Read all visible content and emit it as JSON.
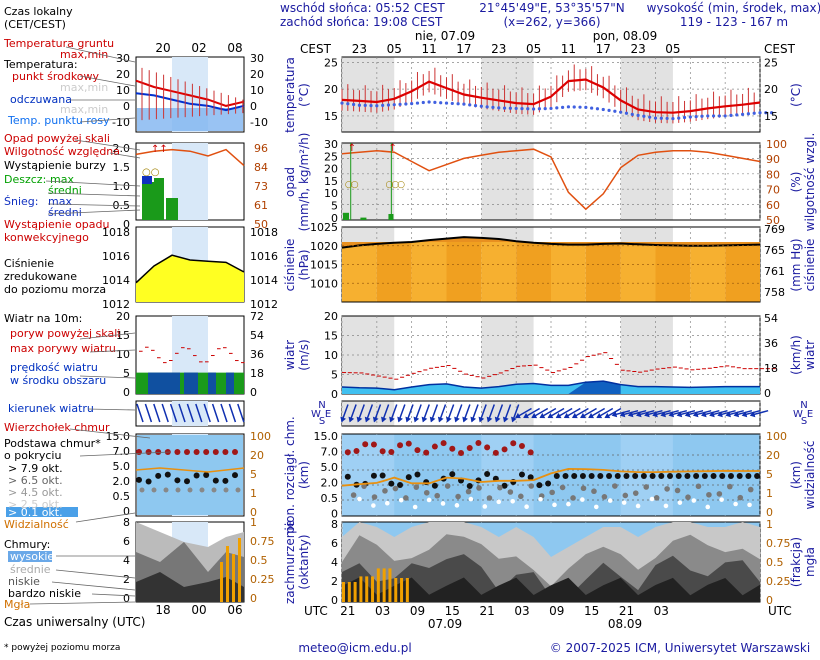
{
  "header": {
    "sunrise": "wschód słońca: 05:52 CEST",
    "sunset": "zachód słońca: 19:08 CEST",
    "coords": "21°45'49\"E, 53°35'57\"N",
    "grid": "(x=262, y=366)",
    "height_title": "wysokość (min, środek, max)",
    "height_values": "119 - 123 - 167 m",
    "time_local_label": "Czas lokalny",
    "time_local_sub": "(CET/CEST)",
    "cest_left": "CEST",
    "cest_right": "CEST",
    "day1": "nie, 07.09",
    "day2": "pon, 08.09",
    "top_hours": [
      "23",
      "05",
      "11",
      "17",
      "23",
      "05",
      "11",
      "17",
      "23",
      "05"
    ],
    "legend_top_hours": [
      "20",
      "02",
      "08"
    ]
  },
  "footer": {
    "utc_left": "UTC",
    "utc_right": "UTC",
    "bottom_hours": [
      "21",
      "03",
      "09",
      "15",
      "21",
      "03",
      "09",
      "15",
      "21",
      "03"
    ],
    "date1": "07.09",
    "date2": "08.09",
    "legend_bottom_hours": [
      "18",
      "00",
      "06"
    ],
    "utc_label": "Czas uniwersalny (UTC)",
    "footnote": "* powyżej poziomu morza",
    "email": "meteo@icm.edu.pl",
    "copyright": "© 2007-2025 ICM, Uniwersytet Warszawski"
  },
  "legend": {
    "temp_ground": "Temperatura gruntu",
    "temp_ground_mm": "max,min",
    "temperature": "Temperatura:",
    "mid_point": "punkt środkowy",
    "max_min": "max,min",
    "felt": "odczuwana",
    "felt_mm": "max,min",
    "dew_point": "Temp. punktu rosy",
    "precip_above": "Opad powyżej skali",
    "humidity": "Wilgotność względna",
    "storm": "Wystąpienie burzy",
    "rain": "Deszcz:",
    "rain_max": "max",
    "rain_mid": "średni",
    "snow": "Śnieg:",
    "snow_max": "max",
    "snow_mid": "średni",
    "precip_conv": "Wystąpienie opadu",
    "precip_conv2": "konwekcyjnego",
    "pressure1": "Ciśnienie",
    "pressure2": "zredukowane",
    "pressure3": "do poziomu morza",
    "wind_at": "Wiatr na 10m:",
    "gust_above": "poryw powyżej skali",
    "gust_max": "max porywy wiatru",
    "wind_speed1": "prędkość wiatru",
    "wind_speed2": "w środku obszaru",
    "wind_dir": "kierunek wiatru",
    "cloud_top": "Wierzchołek chmur",
    "cloud_base1": "Podstawa chmur*",
    "cloud_base2": "o pokryciu",
    "okt": [
      "> 7.9 okt.",
      "> 6.5 okt.",
      "> 4.5 okt.",
      "> 2.5 okt.",
      "> 0.1 okt."
    ],
    "visibility": "Widzialność",
    "clouds": "Chmury:",
    "cloud_high": "wysokie",
    "cloud_mid": "średnie",
    "cloud_low": "niskie",
    "cloud_vlow": "bardzo niskie",
    "fog": "Mgła",
    "temp_ticks_left": [
      "30",
      "20",
      "10",
      "0",
      "-10"
    ],
    "temp_ticks_right": [
      "30",
      "20",
      "10",
      "0",
      "-10"
    ],
    "prec_ticks_left": [
      "2.0",
      "1.5",
      "1.0",
      "0.5",
      "0"
    ],
    "hum_ticks": [
      "96",
      "84",
      "73",
      "61",
      "50"
    ],
    "pres_ticks_left": [
      "1018",
      "1016",
      "1014",
      "1012"
    ],
    "pres_ticks_right": [
      "1018",
      "1016",
      "1014",
      "1012"
    ],
    "wind_ticks_left": [
      "20",
      "15",
      "10",
      "5",
      "0"
    ],
    "wind_ticks_right": [
      "72",
      "54",
      "36",
      "18",
      "0"
    ],
    "cloud_ticks_left": [
      "15.0",
      "7.0",
      "5.0",
      "2.0",
      "0.5",
      "0"
    ],
    "vis_ticks": [
      "100",
      "20",
      "5",
      "1",
      "0"
    ],
    "cc_ticks_left": [
      "8",
      "6",
      "4",
      "2",
      "0"
    ],
    "cc_ticks_right": [
      "1",
      "0.75",
      "0.5",
      "0.25",
      "0"
    ]
  },
  "axes": {
    "temp_label": "temperatura\n(°C)",
    "temp_label_r": "(°C)",
    "temp_ticks": [
      "25",
      "20",
      "15"
    ],
    "prec_label": "opad\n(mm/h, kg/m²/h)",
    "prec_ticks": [
      "30",
      "25",
      "20",
      "15",
      "10",
      "5",
      "0"
    ],
    "hum_label": "(%)\nwilgotność wzgl.",
    "hum_ticks": [
      "100",
      "90",
      "80",
      "70",
      "60",
      "50"
    ],
    "pres_label": "ciśnienie\n(hPa)",
    "pres_ticks": [
      "1025",
      "1020",
      "1015",
      "1010"
    ],
    "pres_label_r": "(mm Hg)\nciśnienie",
    "pres_ticks_r": [
      "769",
      "765",
      "761",
      "758"
    ],
    "wind_label": "wiatr\n(m/s)",
    "wind_ticks": [
      "20",
      "15",
      "10",
      "5",
      "0"
    ],
    "wind_label_r": "(km/h)\nwiatr",
    "wind_ticks_r": [
      "54",
      "36",
      "18",
      "0"
    ],
    "cloud_label": "pion. rozciągł. chm.\n(km)",
    "cloud_ticks": [
      "15.0",
      "7.0",
      "5.0",
      "2.0",
      "0.5",
      "0"
    ],
    "vis_label": "(km)\nwidzialność",
    "vis_ticks": [
      "100",
      "20",
      "5",
      "1",
      "0"
    ],
    "cc_label": "zachmurzenie\n(oktanty)",
    "cc_ticks": [
      "8",
      "6",
      "4",
      "2",
      "0"
    ],
    "fog_label": "(frakcja)\nmgła",
    "fog_ticks": [
      "1",
      "0.75",
      "0.5",
      "0.25",
      "0"
    ],
    "compass": [
      "N",
      "W",
      "S",
      "E"
    ]
  },
  "chart_data": {
    "type": "line",
    "x_hours": [
      0,
      3,
      6,
      9,
      12,
      15,
      18,
      21,
      24,
      27,
      30,
      33,
      36,
      39,
      42,
      45,
      48,
      51,
      54,
      57,
      60,
      63,
      66,
      69,
      72
    ],
    "x_start": "2025-09-06 20:00 CEST",
    "temperature_mid_c": [
      18,
      17.8,
      17.6,
      18.2,
      19.6,
      21.4,
      20.2,
      19.0,
      18.4,
      17.9,
      17.4,
      17.2,
      18.6,
      21.5,
      21.8,
      20.3,
      17.9,
      16.2,
      15.7,
      15.6,
      15.9,
      16.4,
      16.8,
      17.1,
      17.5
    ],
    "dew_point_c": [
      17.4,
      17.0,
      16.9,
      17.1,
      17.3,
      17.6,
      17.4,
      17.2,
      16.8,
      16.5,
      16.4,
      16.3,
      16.4,
      16.7,
      16.6,
      16.2,
      15.7,
      15.1,
      14.6,
      14.5,
      14.8,
      15.0,
      15.0,
      15.3,
      15.6
    ],
    "humidity_pct": [
      93,
      94,
      95,
      94,
      88,
      82,
      86,
      90,
      92,
      94,
      95,
      96,
      91,
      68,
      57,
      67,
      84,
      92,
      94,
      95,
      95,
      94,
      92,
      90,
      88
    ],
    "pressure_hpa": [
      1019.5,
      1020.1,
      1020.5,
      1020.8,
      1021.0,
      1021.5,
      1021.9,
      1022.3,
      1022.1,
      1021.8,
      1021.2,
      1020.8,
      1020.5,
      1020.3,
      1020.3,
      1020.5,
      1020.6,
      1020.4,
      1020.2,
      1020.1,
      1020.0,
      1020.0,
      1020.1,
      1020.2,
      1020.3
    ],
    "wind_ms": [
      1.8,
      1.6,
      1.5,
      1.1,
      1.8,
      2.4,
      2.6,
      1.8,
      1.5,
      1.9,
      2.5,
      2.7,
      2.2,
      2.2,
      3.0,
      3.3,
      2.4,
      1.9,
      1.9,
      1.8,
      1.7,
      1.8,
      1.9,
      1.9,
      1.9
    ],
    "gust_ms": [
      5.5,
      5.4,
      4.6,
      3.8,
      5.3,
      6.6,
      7.3,
      5.1,
      4.1,
      5.4,
      7.1,
      7.4,
      5.5,
      6.8,
      9.6,
      10.6,
      6.1,
      5.6,
      6.4,
      6.9,
      6.2,
      6.6,
      7.2,
      6.5,
      6.5
    ],
    "visibility_km": [
      2.5,
      2.8,
      3.1,
      4.5,
      3.0,
      3.0,
      4.5,
      4.2,
      3.3,
      3.6,
      3.6,
      3.8,
      6.0,
      8.0,
      7.9,
      7.5,
      6.8,
      6.5,
      6.5,
      6.7,
      6.8,
      6.9,
      7.1,
      7.0,
      7.0
    ],
    "fog_fraction": [
      0.25,
      0.32,
      0.42,
      0.3,
      0,
      0,
      0,
      0,
      0,
      0,
      0,
      0,
      0,
      0,
      0,
      0,
      0,
      0,
      0,
      0,
      0,
      0,
      0,
      0,
      0
    ],
    "precip_mmh": [
      1.2,
      0.4,
      0,
      0,
      0,
      0,
      0,
      0,
      0,
      0,
      0,
      0,
      0,
      0,
      0,
      0,
      0,
      0,
      0,
      0,
      0,
      0,
      0,
      0,
      0
    ],
    "cloud_octants": [
      5,
      7,
      6,
      5,
      6,
      7,
      8,
      7,
      6,
      5,
      6,
      5,
      3,
      4,
      5,
      6,
      6,
      5,
      6,
      7,
      7,
      6,
      6,
      7,
      6
    ],
    "ylim_temp": [
      12,
      26
    ],
    "ylim_pressure": [
      1005,
      1025
    ],
    "ylim_wind": [
      0,
      20
    ],
    "ylim_humidity": [
      50,
      100
    ]
  }
}
